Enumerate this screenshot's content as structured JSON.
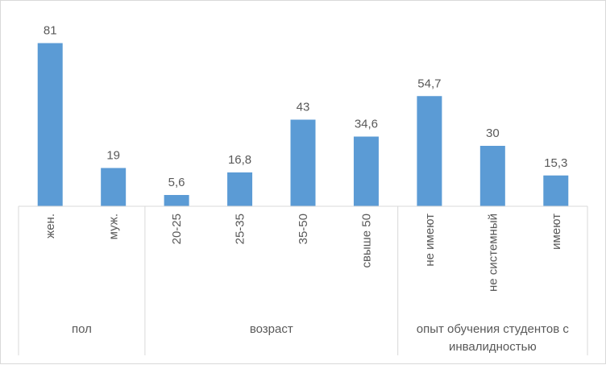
{
  "chart_data": {
    "type": "bar",
    "title": "",
    "xlabel": "",
    "ylabel": "",
    "ylim": [
      0,
      90
    ],
    "grid": false,
    "legend": "none",
    "bar_color": "#5b9bd5",
    "categories": [
      "жен.",
      "муж.",
      "20-25",
      "25-35",
      "35-50",
      "свыше 50",
      "не имеют",
      "не системный",
      "имеют"
    ],
    "values": [
      81,
      19,
      5.6,
      16.8,
      43,
      34.6,
      54.7,
      30,
      15.3
    ],
    "data_labels": [
      "81",
      "19",
      "5,6",
      "16,8",
      "43",
      "34,6",
      "54,7",
      "30",
      "15,3"
    ],
    "groups": [
      {
        "label_lines": [
          "пол"
        ],
        "count": 2
      },
      {
        "label_lines": [
          "возраст"
        ],
        "count": 4
      },
      {
        "label_lines": [
          "опыт обучения студентов с",
          "инвалидностью"
        ],
        "count": 3
      }
    ]
  }
}
